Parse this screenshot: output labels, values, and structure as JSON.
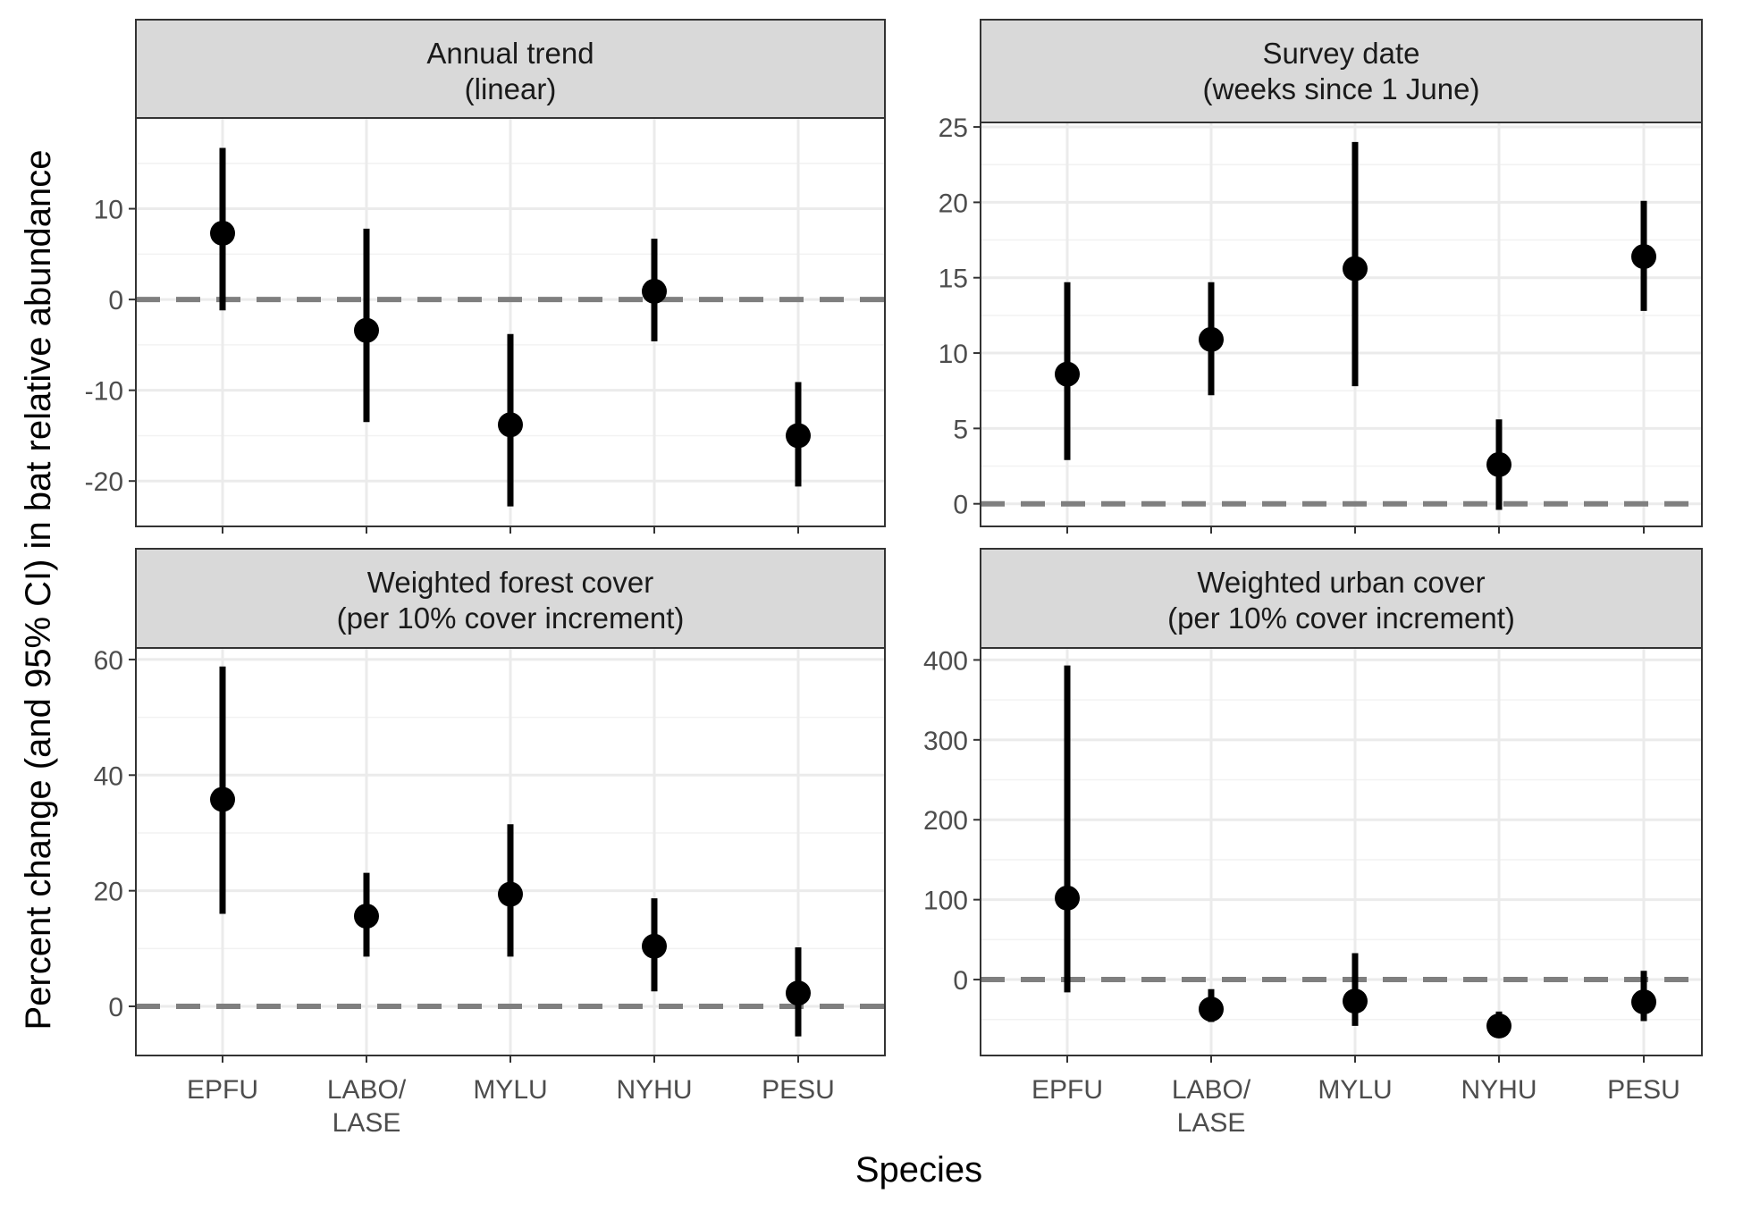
{
  "colors": {
    "points": "#000000",
    "reference_line": "#7f7f7f",
    "strip": "#d9d9d9"
  },
  "chart_data": {
    "type": "scatter",
    "subtype": "point-range facets",
    "xlabel": "Species",
    "ylabel": "Percent change (and 95% CI) in bat relative abundance",
    "categories": [
      "EPFU",
      "LABO/\nLASE",
      "MYLU",
      "NYHU",
      "PESU"
    ],
    "reference_line": 0,
    "grid": true,
    "panels": [
      {
        "title": "Annual trend\n(linear)",
        "ylim": [
          -25,
          20
        ],
        "yticks": [
          -20,
          -10,
          0,
          10
        ],
        "points": [
          {
            "species": "EPFU",
            "estimate": 7.3,
            "lower": -1.2,
            "upper": 16.7
          },
          {
            "species": "LABO/LASE",
            "estimate": -3.4,
            "lower": -13.5,
            "upper": 7.8
          },
          {
            "species": "MYLU",
            "estimate": -13.8,
            "lower": -22.8,
            "upper": -3.8
          },
          {
            "species": "NYHU",
            "estimate": 0.9,
            "lower": -4.6,
            "upper": 6.7
          },
          {
            "species": "PESU",
            "estimate": -15.0,
            "lower": -20.6,
            "upper": -9.1
          }
        ]
      },
      {
        "title": "Survey date\n(weeks since 1 June)",
        "ylim": [
          -1.5,
          25.3
        ],
        "yticks": [
          0,
          5,
          10,
          15,
          20,
          25
        ],
        "points": [
          {
            "species": "EPFU",
            "estimate": 8.6,
            "lower": 2.9,
            "upper": 14.7
          },
          {
            "species": "LABO/LASE",
            "estimate": 10.9,
            "lower": 7.2,
            "upper": 14.7
          },
          {
            "species": "MYLU",
            "estimate": 15.6,
            "lower": 7.8,
            "upper": 24.0
          },
          {
            "species": "NYHU",
            "estimate": 2.6,
            "lower": -0.4,
            "upper": 5.6
          },
          {
            "species": "PESU",
            "estimate": 16.4,
            "lower": 12.8,
            "upper": 20.1
          }
        ]
      },
      {
        "title": "Weighted forest cover\n(per 10% cover increment)",
        "ylim": [
          -8.5,
          62
        ],
        "yticks": [
          0,
          20,
          40,
          60
        ],
        "points": [
          {
            "species": "EPFU",
            "estimate": 35.8,
            "lower": 16.0,
            "upper": 58.8
          },
          {
            "species": "LABO/LASE",
            "estimate": 15.6,
            "lower": 8.6,
            "upper": 23.1
          },
          {
            "species": "MYLU",
            "estimate": 19.4,
            "lower": 8.6,
            "upper": 31.5
          },
          {
            "species": "NYHU",
            "estimate": 10.4,
            "lower": 2.6,
            "upper": 18.7
          },
          {
            "species": "PESU",
            "estimate": 2.3,
            "lower": -5.2,
            "upper": 10.2
          }
        ]
      },
      {
        "title": "Weighted urban cover\n(per 10% cover increment)",
        "ylim": [
          -95,
          415
        ],
        "yticks": [
          0,
          100,
          200,
          300,
          400
        ],
        "points": [
          {
            "species": "EPFU",
            "estimate": 102,
            "lower": -16,
            "upper": 393
          },
          {
            "species": "LABO/LASE",
            "estimate": -37,
            "lower": -53,
            "upper": -12
          },
          {
            "species": "MYLU",
            "estimate": -27,
            "lower": -58,
            "upper": 33
          },
          {
            "species": "NYHU",
            "estimate": -58,
            "lower": -68,
            "upper": -40
          },
          {
            "species": "PESU",
            "estimate": -28,
            "lower": -52,
            "upper": 11
          }
        ]
      }
    ]
  }
}
